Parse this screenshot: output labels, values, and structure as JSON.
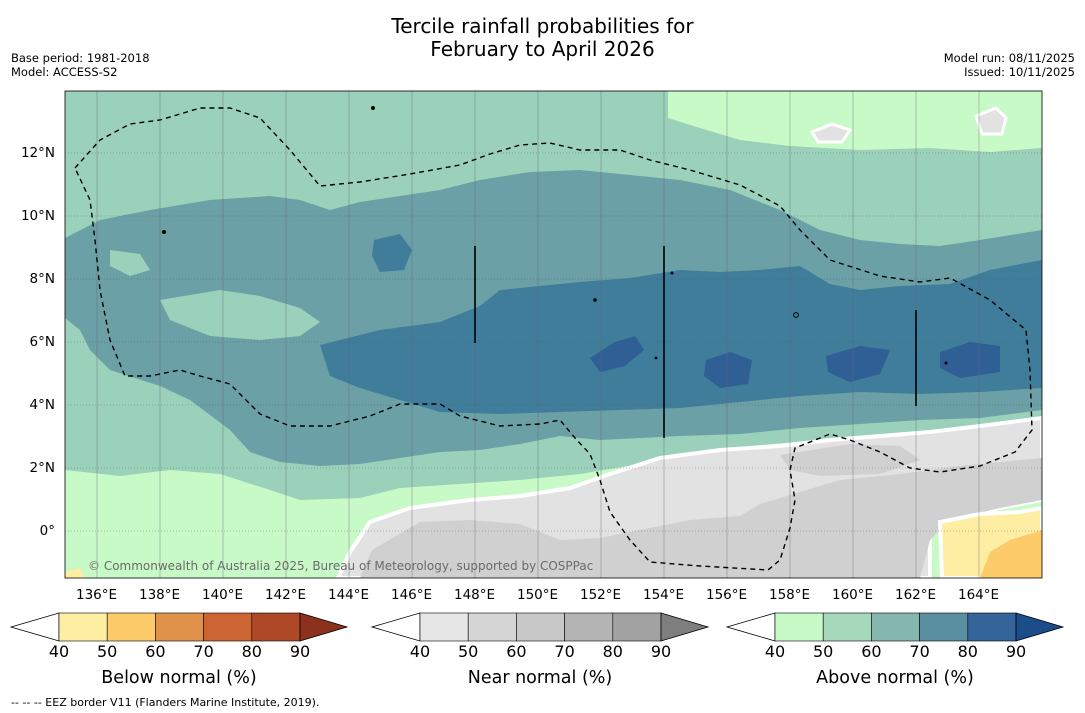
{
  "title": {
    "line1": "Tercile rainfall probabilities for",
    "line2": "February to April 2026"
  },
  "meta_left": {
    "base_period": "Base period: 1981-2018",
    "model": "Model: ACCESS-S2"
  },
  "meta_right": {
    "model_run": "Model run: 08/11/2025",
    "issued": "Issued: 10/11/2025"
  },
  "map": {
    "lon_labels": [
      "136°E",
      "138°E",
      "140°E",
      "142°E",
      "144°E",
      "146°E",
      "148°E",
      "150°E",
      "152°E",
      "154°E",
      "156°E",
      "158°E",
      "160°E",
      "162°E",
      "164°E"
    ],
    "lat_labels": [
      "12°N",
      "10°N",
      "8°N",
      "6°N",
      "4°N",
      "2°N",
      "0°"
    ],
    "copyright": "© Commonwealth of Australia 2025, Bureau of Meteorology, supported by COSPPac"
  },
  "colorbars": [
    {
      "label": "Below normal (%)",
      "ticks": [
        "40",
        "50",
        "60",
        "70",
        "80",
        "90"
      ],
      "colors": [
        "#fdeea4",
        "#fdcb6a",
        "#e0924a",
        "#cd6433",
        "#ae4826"
      ],
      "extend_color": "#8c321c"
    },
    {
      "label": "Near normal (%)",
      "ticks": [
        "40",
        "50",
        "60",
        "70",
        "80",
        "90"
      ],
      "colors": [
        "#e6e6e6",
        "#d6d6d6",
        "#c8c8c8",
        "#b4b4b4",
        "#a2a2a2"
      ],
      "extend_color": "#7e7e7e"
    },
    {
      "label": "Above normal (%)",
      "ticks": [
        "40",
        "50",
        "60",
        "70",
        "80",
        "90"
      ],
      "colors": [
        "#c8fac8",
        "#a6d9bb",
        "#85b6ae",
        "#5a8fa2",
        "#33649a"
      ],
      "extend_color": "#1a4d8a"
    }
  ],
  "footnote": "--  --  -- EEZ border V11 (Flanders Marine Institute, 2019)."
}
